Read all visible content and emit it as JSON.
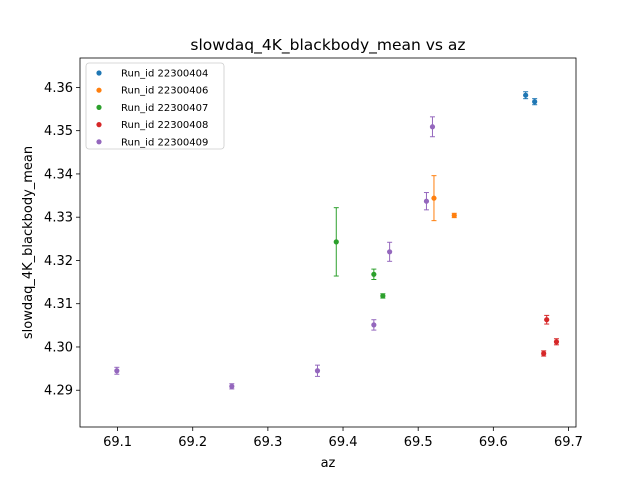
{
  "chart_data": {
    "type": "scatter",
    "title": "slowdaq_4K_blackbody_mean vs az",
    "xlabel": "az",
    "ylabel": "slowdaq_4K_blackbody_mean",
    "xlim": [
      69.05,
      69.71
    ],
    "ylim": [
      4.2815,
      4.3668
    ],
    "x_ticks": [
      69.1,
      69.2,
      69.3,
      69.4,
      69.5,
      69.6,
      69.7
    ],
    "x_tick_labels": [
      "69.1",
      "69.2",
      "69.3",
      "69.4",
      "69.5",
      "69.6",
      "69.7"
    ],
    "y_ticks": [
      4.29,
      4.3,
      4.31,
      4.32,
      4.33,
      4.34,
      4.35,
      4.36
    ],
    "y_tick_labels": [
      "4.29",
      "4.30",
      "4.31",
      "4.32",
      "4.33",
      "4.34",
      "4.35",
      "4.36"
    ],
    "grid": false,
    "legend_position": "top-left",
    "series": [
      {
        "name": "Run_id 22300404",
        "color": "#1f77b4",
        "points": [
          {
            "x": 69.643,
            "y": 4.3582,
            "err": 0.0008
          },
          {
            "x": 69.655,
            "y": 4.3567,
            "err": 0.0007
          }
        ]
      },
      {
        "name": "Run_id 22300406",
        "color": "#ff7f0e",
        "points": [
          {
            "x": 69.521,
            "y": 4.3344,
            "err": 0.0052
          },
          {
            "x": 69.548,
            "y": 4.3304,
            "err": 0.0005
          }
        ]
      },
      {
        "name": "Run_id 22300407",
        "color": "#2ca02c",
        "points": [
          {
            "x": 69.391,
            "y": 4.3243,
            "err": 0.0079
          },
          {
            "x": 69.441,
            "y": 4.3168,
            "err": 0.0012
          },
          {
            "x": 69.453,
            "y": 4.3118,
            "err": 0.0005
          }
        ]
      },
      {
        "name": "Run_id 22300408",
        "color": "#d62728",
        "points": [
          {
            "x": 69.667,
            "y": 4.2985,
            "err": 0.0006
          },
          {
            "x": 69.671,
            "y": 4.3063,
            "err": 0.001
          },
          {
            "x": 69.684,
            "y": 4.3012,
            "err": 0.0007
          }
        ]
      },
      {
        "name": "Run_id 22300409",
        "color": "#9467bd",
        "points": [
          {
            "x": 69.099,
            "y": 4.2945,
            "err": 0.0008
          },
          {
            "x": 69.252,
            "y": 4.2909,
            "err": 0.0006
          },
          {
            "x": 69.366,
            "y": 4.2945,
            "err": 0.0013
          },
          {
            "x": 69.441,
            "y": 4.3051,
            "err": 0.0012
          },
          {
            "x": 69.462,
            "y": 4.322,
            "err": 0.0022
          },
          {
            "x": 69.511,
            "y": 4.3337,
            "err": 0.002
          },
          {
            "x": 69.519,
            "y": 4.3509,
            "err": 0.0023
          }
        ]
      }
    ]
  }
}
